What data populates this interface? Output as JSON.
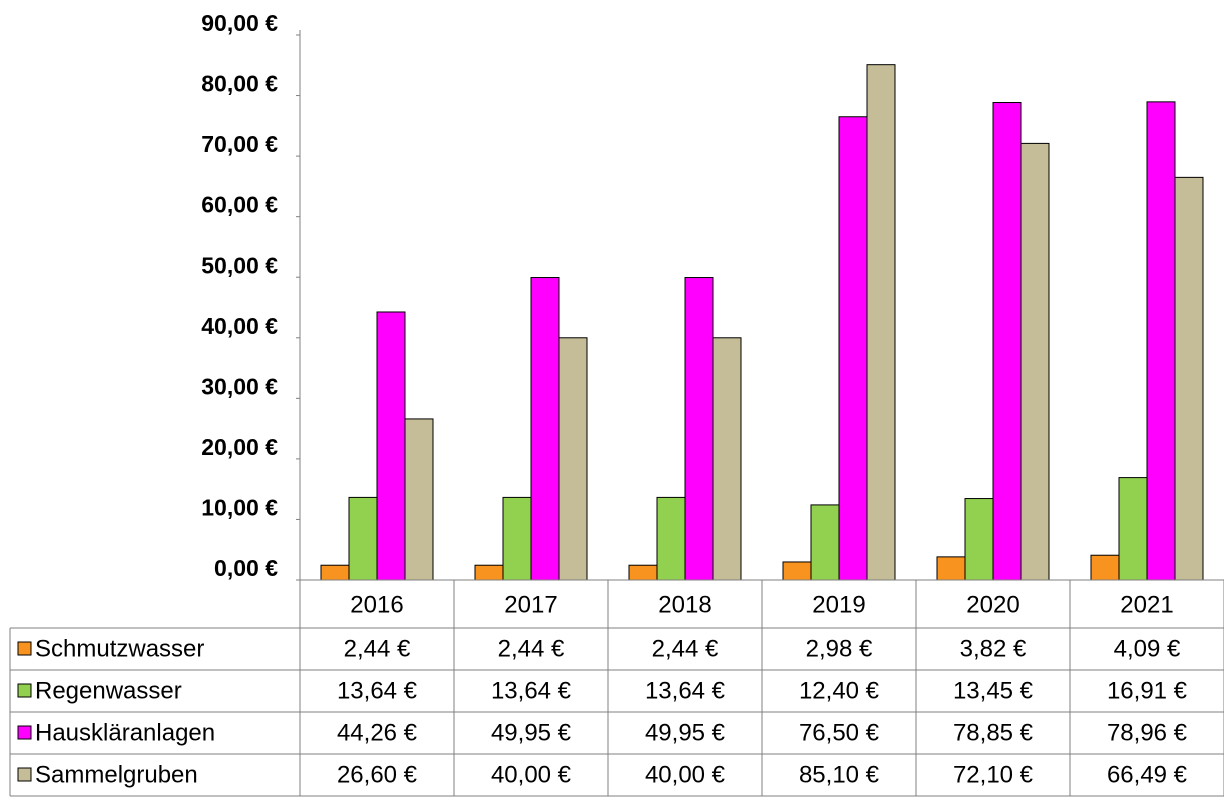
{
  "chart_data": {
    "type": "bar",
    "categories": [
      "2016",
      "2017",
      "2018",
      "2019",
      "2020",
      "2021"
    ],
    "series": [
      {
        "name": "Schmutzwasser",
        "color": "#f7931e",
        "values": [
          2.44,
          2.44,
          2.44,
          2.98,
          3.82,
          4.09
        ],
        "value_labels": [
          "2,44 €",
          "2,44 €",
          "2,44 €",
          "2,98 €",
          "3,82 €",
          "4,09 €"
        ]
      },
      {
        "name": "Regenwasser",
        "color": "#92d050",
        "values": [
          13.64,
          13.64,
          13.64,
          12.4,
          13.45,
          16.91
        ],
        "value_labels": [
          "13,64 €",
          "13,64 €",
          "13,64 €",
          "12,40 €",
          "13,45 €",
          "16,91 €"
        ]
      },
      {
        "name": "Hauskläranlagen",
        "color": "#ff00ff",
        "values": [
          44.26,
          49.95,
          49.95,
          76.5,
          78.85,
          78.96
        ],
        "value_labels": [
          "44,26 €",
          "49,95 €",
          "49,95 €",
          "76,50 €",
          "78,85 €",
          "78,96 €"
        ]
      },
      {
        "name": "Sammelgruben",
        "color": "#c4bd97",
        "values": [
          26.6,
          40.0,
          40.0,
          85.1,
          72.1,
          66.49
        ],
        "value_labels": [
          "26,60 €",
          "40,00 €",
          "40,00 €",
          "85,10 €",
          "72,10 €",
          "66,49 €"
        ]
      }
    ],
    "ylim": [
      0,
      90
    ],
    "yticks": [
      {
        "value": 0,
        "label": "0,00 €"
      },
      {
        "value": 10,
        "label": "10,00 €"
      },
      {
        "value": 20,
        "label": "20,00 €"
      },
      {
        "value": 30,
        "label": "30,00 €"
      },
      {
        "value": 40,
        "label": "40,00 €"
      },
      {
        "value": 50,
        "label": "50,00 €"
      },
      {
        "value": 60,
        "label": "60,00 €"
      },
      {
        "value": 70,
        "label": "70,00 €"
      },
      {
        "value": 80,
        "label": "80,00 €"
      },
      {
        "value": 90,
        "label": "90,00 €"
      }
    ],
    "grid": false,
    "legend": "table"
  }
}
